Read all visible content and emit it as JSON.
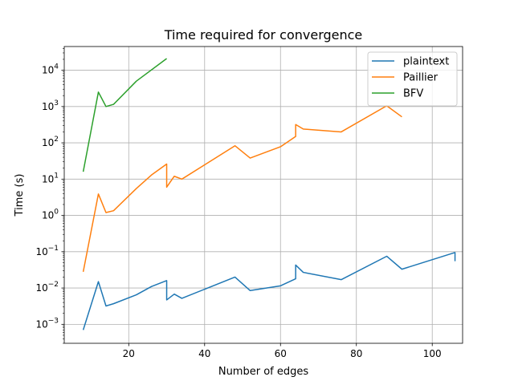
{
  "chart_data": {
    "type": "line",
    "title": "Time required for convergence",
    "xlabel": "Number of edges",
    "ylabel": "Time (s)",
    "xlim": [
      3,
      108
    ],
    "ylim": [
      0.0003,
      45000
    ],
    "yscale": "log",
    "grid": true,
    "legend_position": "top-right",
    "x_ticks": [
      20,
      40,
      60,
      80,
      100
    ],
    "y_ticks": [
      {
        "value": 0.001,
        "base": "10",
        "exp": "−3"
      },
      {
        "value": 0.01,
        "base": "10",
        "exp": "−2"
      },
      {
        "value": 0.1,
        "base": "10",
        "exp": "−1"
      },
      {
        "value": 1,
        "base": "10",
        "exp": "0"
      },
      {
        "value": 10,
        "base": "10",
        "exp": "1"
      },
      {
        "value": 100,
        "base": "10",
        "exp": "2"
      },
      {
        "value": 1000,
        "base": "10",
        "exp": "3"
      },
      {
        "value": 10000,
        "base": "10",
        "exp": "4"
      }
    ],
    "series": [
      {
        "name": "plaintext",
        "color": "#1f77b4",
        "x": [
          8,
          12,
          14,
          16,
          22,
          26,
          30,
          30,
          32,
          34,
          48,
          52,
          60,
          64,
          64,
          66,
          76,
          88,
          92,
          106,
          106
        ],
        "y": [
          0.0007,
          0.015,
          0.0032,
          0.0037,
          0.0065,
          0.011,
          0.016,
          0.0047,
          0.0068,
          0.0052,
          0.02,
          0.0085,
          0.0115,
          0.018,
          0.043,
          0.027,
          0.017,
          0.075,
          0.033,
          0.095,
          0.055
        ]
      },
      {
        "name": "Paillier",
        "color": "#ff7f0e",
        "x": [
          8,
          12,
          14,
          16,
          22,
          26,
          30,
          30,
          32,
          34,
          48,
          52,
          60,
          64,
          64,
          66,
          76,
          88,
          92
        ],
        "y": [
          0.028,
          3.9,
          1.2,
          1.35,
          5.5,
          13,
          26,
          6,
          12,
          10,
          83,
          38,
          78,
          150,
          320,
          240,
          200,
          1050,
          520
        ]
      },
      {
        "name": "BFV",
        "color": "#2ca02c",
        "x": [
          8,
          12,
          14,
          16,
          22,
          30
        ],
        "y": [
          16,
          2500,
          1000,
          1150,
          5000,
          21000
        ]
      }
    ]
  }
}
